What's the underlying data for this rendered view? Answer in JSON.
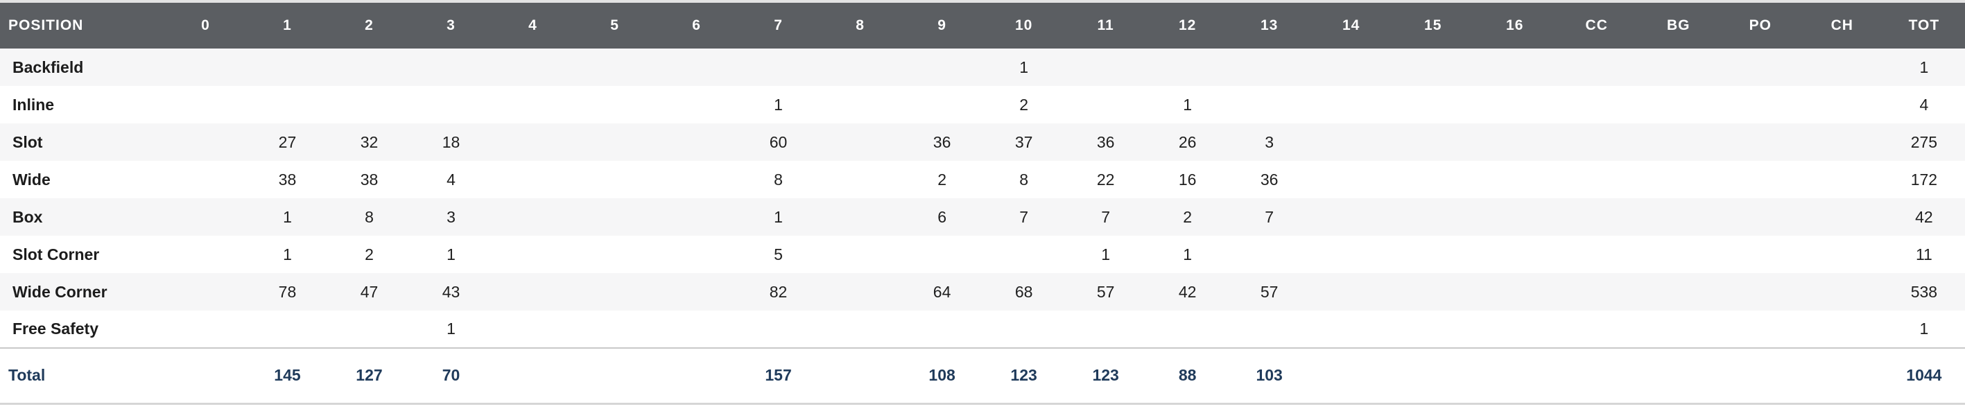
{
  "table": {
    "columns": [
      "POSITION",
      "0",
      "1",
      "2",
      "3",
      "4",
      "5",
      "6",
      "7",
      "8",
      "9",
      "10",
      "11",
      "12",
      "13",
      "14",
      "15",
      "16",
      "CC",
      "BG",
      "PO",
      "CH",
      "TOT"
    ],
    "rows": [
      [
        "Backfield",
        "",
        "",
        "",
        "",
        "",
        "",
        "",
        "",
        "",
        "",
        "1",
        "",
        "",
        "",
        "",
        "",
        "",
        "",
        "",
        "",
        "",
        "1"
      ],
      [
        "Inline",
        "",
        "",
        "",
        "",
        "",
        "",
        "",
        "1",
        "",
        "",
        "2",
        "",
        "1",
        "",
        "",
        "",
        "",
        "",
        "",
        "",
        "",
        "4"
      ],
      [
        "Slot",
        "",
        "27",
        "32",
        "18",
        "",
        "",
        "",
        "60",
        "",
        "36",
        "37",
        "36",
        "26",
        "3",
        "",
        "",
        "",
        "",
        "",
        "",
        "",
        "275"
      ],
      [
        "Wide",
        "",
        "38",
        "38",
        "4",
        "",
        "",
        "",
        "8",
        "",
        "2",
        "8",
        "22",
        "16",
        "36",
        "",
        "",
        "",
        "",
        "",
        "",
        "",
        "172"
      ],
      [
        "Box",
        "",
        "1",
        "8",
        "3",
        "",
        "",
        "",
        "1",
        "",
        "6",
        "7",
        "7",
        "2",
        "7",
        "",
        "",
        "",
        "",
        "",
        "",
        "",
        "42"
      ],
      [
        "Slot Corner",
        "",
        "1",
        "2",
        "1",
        "",
        "",
        "",
        "5",
        "",
        "",
        "",
        "1",
        "1",
        "",
        "",
        "",
        "",
        "",
        "",
        "",
        "",
        "11"
      ],
      [
        "Wide Corner",
        "",
        "78",
        "47",
        "43",
        "",
        "",
        "",
        "82",
        "",
        "64",
        "68",
        "57",
        "42",
        "57",
        "",
        "",
        "",
        "",
        "",
        "",
        "",
        "538"
      ],
      [
        "Free Safety",
        "",
        "",
        "",
        "1",
        "",
        "",
        "",
        "",
        "",
        "",
        "",
        "",
        "",
        "",
        "",
        "",
        "",
        "",
        "",
        "",
        "",
        "1"
      ]
    ],
    "total": [
      "Total",
      "",
      "145",
      "127",
      "70",
      "",
      "",
      "",
      "157",
      "",
      "108",
      "123",
      "123",
      "88",
      "103",
      "",
      "",
      "",
      "",
      "",
      "",
      "",
      "1044"
    ]
  },
  "colors": {
    "header_bg": "#5b5e62",
    "header_text": "#ffffff",
    "total_text": "#1f3a5a",
    "row_stripe": "#f6f6f7"
  }
}
